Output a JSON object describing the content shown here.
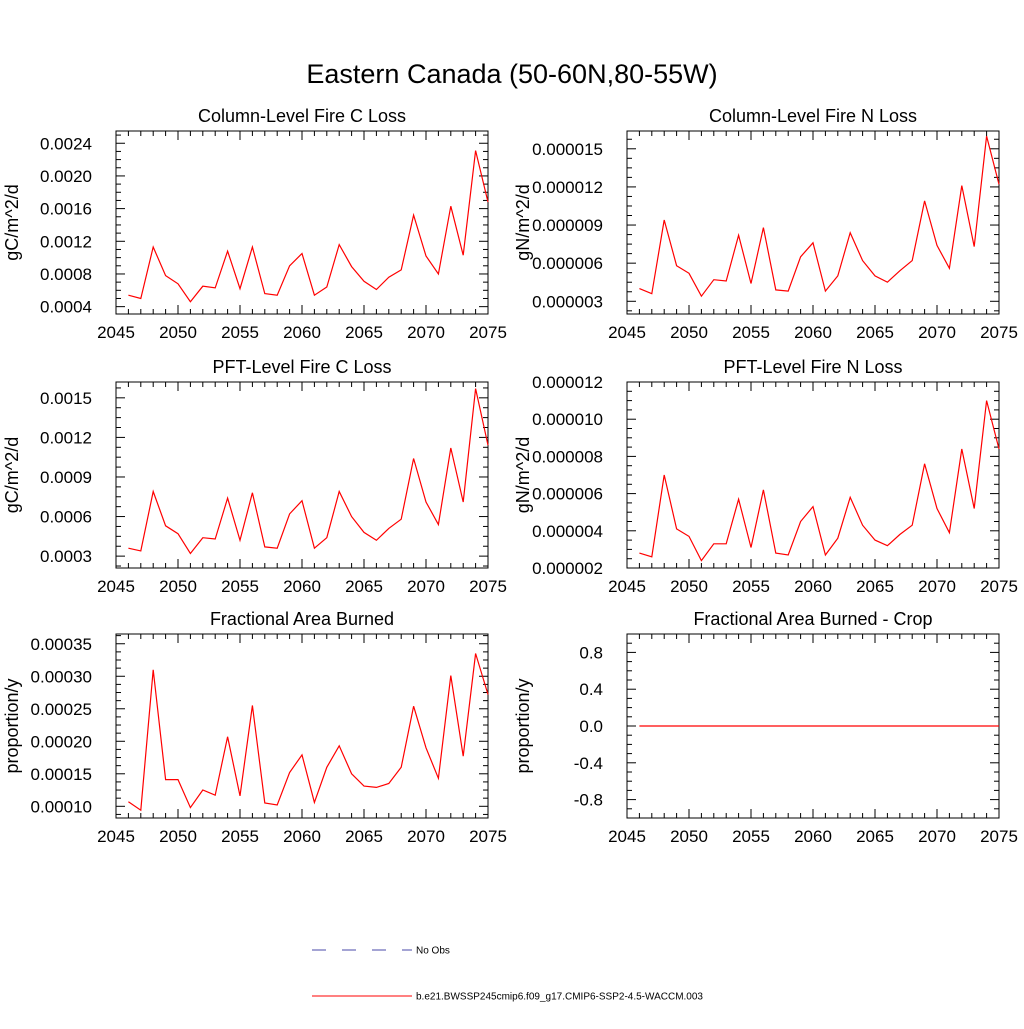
{
  "title": "Eastern Canada (50-60N,80-55W)",
  "colors": {
    "series": "#ff0000",
    "obs": "#4a4aa8",
    "axis": "#000000"
  },
  "legend": {
    "entries": [
      {
        "label": "No Obs",
        "style": "dashed",
        "color": "#4a4aa8"
      },
      {
        "label": "b.e21.BWSSP245cmip6.f09_g17.CMIP6-SSP2-4.5-WACCM.003",
        "style": "solid",
        "color": "#ff0000"
      }
    ]
  },
  "chart_data": [
    {
      "type": "line",
      "title": "Column-Level Fire C Loss",
      "ylabel": "gC/m^2/d",
      "xlabel": "",
      "xlim": [
        2045,
        2075
      ],
      "ylim": [
        0.00031,
        0.00255
      ],
      "xticks": [
        "2045",
        "2050",
        "2055",
        "2060",
        "2065",
        "2070",
        "2075"
      ],
      "yticks": [
        {
          "v": 0.0004,
          "label": "0.0004"
        },
        {
          "v": 0.0008,
          "label": "0.0008"
        },
        {
          "v": 0.0012,
          "label": "0.0012"
        },
        {
          "v": 0.0016,
          "label": "0.0016"
        },
        {
          "v": 0.002,
          "label": "0.0020"
        },
        {
          "v": 0.0024,
          "label": "0.0024"
        }
      ],
      "x": [
        2046,
        2047,
        2048,
        2049,
        2050,
        2051,
        2052,
        2053,
        2054,
        2055,
        2056,
        2057,
        2058,
        2059,
        2060,
        2061,
        2062,
        2063,
        2064,
        2065,
        2066,
        2067,
        2068,
        2069,
        2070,
        2071,
        2072,
        2073,
        2074,
        2075
      ],
      "series": [
        {
          "name": "b.e21.BWSSP245cmip6.f09_g17.CMIP6-SSP2-4.5-WACCM.003",
          "values": [
            0.00054,
            0.0005,
            0.00113,
            0.00078,
            0.00068,
            0.00046,
            0.00065,
            0.00063,
            0.00108,
            0.00062,
            0.00113,
            0.00056,
            0.00054,
            0.0009,
            0.00105,
            0.00054,
            0.00064,
            0.00116,
            0.00089,
            0.00071,
            0.00061,
            0.00076,
            0.00085,
            0.00152,
            0.00102,
            0.0008,
            0.00163,
            0.00103,
            0.00231,
            0.00168
          ]
        }
      ]
    },
    {
      "type": "line",
      "title": "Column-Level Fire N Loss",
      "ylabel": "gN/m^2/d",
      "xlabel": "",
      "xlim": [
        2045,
        2075
      ],
      "ylim": [
        2e-06,
        1.64e-05
      ],
      "xticks": [
        "2045",
        "2050",
        "2055",
        "2060",
        "2065",
        "2070",
        "2075"
      ],
      "yticks": [
        {
          "v": 3e-06,
          "label": "0.000003"
        },
        {
          "v": 6e-06,
          "label": "0.000006"
        },
        {
          "v": 9e-06,
          "label": "0.000009"
        },
        {
          "v": 1.2e-05,
          "label": "0.000012"
        },
        {
          "v": 1.5e-05,
          "label": "0.000015"
        }
      ],
      "x": [
        2046,
        2047,
        2048,
        2049,
        2050,
        2051,
        2052,
        2053,
        2054,
        2055,
        2056,
        2057,
        2058,
        2059,
        2060,
        2061,
        2062,
        2063,
        2064,
        2065,
        2066,
        2067,
        2068,
        2069,
        2070,
        2071,
        2072,
        2073,
        2074,
        2075
      ],
      "series": [
        {
          "name": "b.e21.BWSSP245cmip6.f09_g17.CMIP6-SSP2-4.5-WACCM.003",
          "values": [
            4e-06,
            3.6e-06,
            9.4e-06,
            5.8e-06,
            5.2e-06,
            3.4e-06,
            4.7e-06,
            4.6e-06,
            8.2e-06,
            4.4e-06,
            8.8e-06,
            3.9e-06,
            3.8e-06,
            6.5e-06,
            7.6e-06,
            3.8e-06,
            5e-06,
            8.4e-06,
            6.2e-06,
            5e-06,
            4.5e-06,
            5.4e-06,
            6.2e-06,
            1.09e-05,
            7.4e-06,
            5.6e-06,
            1.21e-05,
            7.3e-06,
            1.6e-05,
            1.22e-05
          ]
        }
      ]
    },
    {
      "type": "line",
      "title": "PFT-Level Fire C Loss",
      "ylabel": "gC/m^2/d",
      "xlabel": "",
      "xlim": [
        2045,
        2075
      ],
      "ylim": [
        0.00021,
        0.00162
      ],
      "xticks": [
        "2045",
        "2050",
        "2055",
        "2060",
        "2065",
        "2070",
        "2075"
      ],
      "yticks": [
        {
          "v": 0.0003,
          "label": "0.0003"
        },
        {
          "v": 0.0006,
          "label": "0.0006"
        },
        {
          "v": 0.0009,
          "label": "0.0009"
        },
        {
          "v": 0.0012,
          "label": "0.0012"
        },
        {
          "v": 0.0015,
          "label": "0.0015"
        }
      ],
      "x": [
        2046,
        2047,
        2048,
        2049,
        2050,
        2051,
        2052,
        2053,
        2054,
        2055,
        2056,
        2057,
        2058,
        2059,
        2060,
        2061,
        2062,
        2063,
        2064,
        2065,
        2066,
        2067,
        2068,
        2069,
        2070,
        2071,
        2072,
        2073,
        2074,
        2075
      ],
      "series": [
        {
          "name": "b.e21.BWSSP245cmip6.f09_g17.CMIP6-SSP2-4.5-WACCM.003",
          "values": [
            0.00036,
            0.00034,
            0.00079,
            0.00053,
            0.00047,
            0.00032,
            0.00044,
            0.00043,
            0.00074,
            0.00042,
            0.00078,
            0.00037,
            0.00036,
            0.00062,
            0.00072,
            0.00036,
            0.00044,
            0.00079,
            0.0006,
            0.00048,
            0.00042,
            0.00051,
            0.00058,
            0.00104,
            0.00071,
            0.00054,
            0.00112,
            0.00071,
            0.00157,
            0.00114
          ]
        }
      ]
    },
    {
      "type": "line",
      "title": "PFT-Level Fire N Loss",
      "ylabel": "gN/m^2/d",
      "xlabel": "",
      "xlim": [
        2045,
        2075
      ],
      "ylim": [
        2e-06,
        1.2e-05
      ],
      "xticks": [
        "2045",
        "2050",
        "2055",
        "2060",
        "2065",
        "2070",
        "2075"
      ],
      "yticks": [
        {
          "v": 2e-06,
          "label": "0.000002"
        },
        {
          "v": 4e-06,
          "label": "0.000004"
        },
        {
          "v": 6e-06,
          "label": "0.000006"
        },
        {
          "v": 8e-06,
          "label": "0.000008"
        },
        {
          "v": 1e-05,
          "label": "0.000010"
        },
        {
          "v": 1.2e-05,
          "label": "0.000012"
        }
      ],
      "x": [
        2046,
        2047,
        2048,
        2049,
        2050,
        2051,
        2052,
        2053,
        2054,
        2055,
        2056,
        2057,
        2058,
        2059,
        2060,
        2061,
        2062,
        2063,
        2064,
        2065,
        2066,
        2067,
        2068,
        2069,
        2070,
        2071,
        2072,
        2073,
        2074,
        2075
      ],
      "series": [
        {
          "name": "b.e21.BWSSP245cmip6.f09_g17.CMIP6-SSP2-4.5-WACCM.003",
          "values": [
            2.8e-06,
            2.6e-06,
            7e-06,
            4.1e-06,
            3.7e-06,
            2.4e-06,
            3.3e-06,
            3.3e-06,
            5.7e-06,
            3.1e-06,
            6.2e-06,
            2.8e-06,
            2.7e-06,
            4.5e-06,
            5.3e-06,
            2.7e-06,
            3.6e-06,
            5.8e-06,
            4.3e-06,
            3.5e-06,
            3.2e-06,
            3.8e-06,
            4.3e-06,
            7.6e-06,
            5.2e-06,
            3.9e-06,
            8.4e-06,
            5.2e-06,
            1.1e-05,
            8.4e-06
          ]
        }
      ]
    },
    {
      "type": "line",
      "title": "Fractional Area Burned",
      "ylabel": "proportion/y",
      "xlabel": "",
      "xlim": [
        2045,
        2075
      ],
      "ylim": [
        8.2e-05,
        0.000365
      ],
      "xticks": [
        "2045",
        "2050",
        "2055",
        "2060",
        "2065",
        "2070",
        "2075"
      ],
      "yticks": [
        {
          "v": 0.0001,
          "label": "0.00010"
        },
        {
          "v": 0.00015,
          "label": "0.00015"
        },
        {
          "v": 0.0002,
          "label": "0.00020"
        },
        {
          "v": 0.00025,
          "label": "0.00025"
        },
        {
          "v": 0.0003,
          "label": "0.00030"
        },
        {
          "v": 0.00035,
          "label": "0.00035"
        }
      ],
      "x": [
        2046,
        2047,
        2048,
        2049,
        2050,
        2051,
        2052,
        2053,
        2054,
        2055,
        2056,
        2057,
        2058,
        2059,
        2060,
        2061,
        2062,
        2063,
        2064,
        2065,
        2066,
        2067,
        2068,
        2069,
        2070,
        2071,
        2072,
        2073,
        2074,
        2075
      ],
      "series": [
        {
          "name": "b.e21.BWSSP245cmip6.f09_g17.CMIP6-SSP2-4.5-WACCM.003",
          "values": [
            0.000107,
            9.4e-05,
            0.00031,
            0.000141,
            0.000141,
            9.8e-05,
            0.000125,
            0.000117,
            0.000207,
            0.000116,
            0.000255,
            0.000105,
            0.000102,
            0.000152,
            0.000179,
            0.000106,
            0.00016,
            0.000193,
            0.00015,
            0.000131,
            0.000129,
            0.000135,
            0.00016,
            0.000254,
            0.00019,
            0.000143,
            0.000301,
            0.000177,
            0.000335,
            0.000272
          ]
        }
      ]
    },
    {
      "type": "line",
      "title": "Fractional Area Burned - Crop",
      "ylabel": "proportion/y",
      "xlabel": "",
      "xlim": [
        2045,
        2075
      ],
      "ylim": [
        -1.0,
        1.0
      ],
      "xticks": [
        "2045",
        "2050",
        "2055",
        "2060",
        "2065",
        "2070",
        "2075"
      ],
      "yticks": [
        {
          "v": -0.8,
          "label": "-0.8"
        },
        {
          "v": -0.4,
          "label": "-0.4"
        },
        {
          "v": 0.0,
          "label": "0.0"
        },
        {
          "v": 0.4,
          "label": "0.4"
        },
        {
          "v": 0.8,
          "label": "0.8"
        }
      ],
      "x": [
        2046,
        2047,
        2048,
        2049,
        2050,
        2051,
        2052,
        2053,
        2054,
        2055,
        2056,
        2057,
        2058,
        2059,
        2060,
        2061,
        2062,
        2063,
        2064,
        2065,
        2066,
        2067,
        2068,
        2069,
        2070,
        2071,
        2072,
        2073,
        2074,
        2075
      ],
      "series": [
        {
          "name": "b.e21.BWSSP245cmip6.f09_g17.CMIP6-SSP2-4.5-WACCM.003",
          "values": [
            0,
            0,
            0,
            0,
            0,
            0,
            0,
            0,
            0,
            0,
            0,
            0,
            0,
            0,
            0,
            0,
            0,
            0,
            0,
            0,
            0,
            0,
            0,
            0,
            0,
            0,
            0,
            0,
            0,
            0
          ]
        }
      ]
    }
  ]
}
